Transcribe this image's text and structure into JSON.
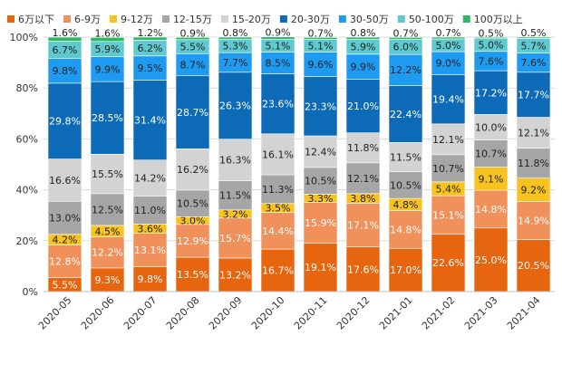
{
  "chart_data": {
    "type": "bar",
    "stacked": true,
    "percent": true,
    "title": "",
    "xlabel": "",
    "ylabel": "",
    "ylim": [
      0,
      100
    ],
    "y_ticks": [
      "0%",
      "20%",
      "40%",
      "60%",
      "80%",
      "100%"
    ],
    "legend_position": "top",
    "categories": [
      "2020-05",
      "2020-06",
      "2020-07",
      "2020-08",
      "2020-09",
      "2020-10",
      "2020-11",
      "2020-12",
      "2021-01",
      "2021-02",
      "2021-03",
      "2021-04"
    ],
    "series": [
      {
        "name": "6万以下",
        "color": "#E8650F",
        "values": [
          5.5,
          9.3,
          9.8,
          13.5,
          13.2,
          16.7,
          19.1,
          17.6,
          17.0,
          22.6,
          25.0,
          20.5
        ]
      },
      {
        "name": "6-9万",
        "color": "#F0905A",
        "values": [
          12.8,
          12.2,
          13.1,
          12.9,
          15.7,
          14.4,
          15.9,
          17.1,
          14.8,
          15.1,
          14.8,
          14.9
        ]
      },
      {
        "name": "9-12万",
        "color": "#F8C31F",
        "values": [
          4.2,
          4.5,
          3.6,
          3.0,
          3.2,
          3.5,
          3.3,
          3.8,
          4.8,
          5.4,
          9.1,
          9.2
        ]
      },
      {
        "name": "12-15万",
        "color": "#A6A6A6",
        "values": [
          13.0,
          12.5,
          11.0,
          10.5,
          11.5,
          11.3,
          10.5,
          12.1,
          10.5,
          10.7,
          10.7,
          11.8
        ]
      },
      {
        "name": "15-20万",
        "color": "#D3D3D3",
        "values": [
          16.6,
          15.5,
          14.2,
          16.2,
          16.3,
          16.1,
          12.4,
          11.8,
          11.5,
          12.1,
          10.0,
          12.1
        ]
      },
      {
        "name": "20-30万",
        "color": "#0D6AB6",
        "values": [
          29.8,
          28.5,
          31.4,
          28.7,
          26.3,
          23.6,
          23.3,
          21.0,
          22.4,
          19.4,
          17.2,
          17.7
        ]
      },
      {
        "name": "30-50万",
        "color": "#1E9BF0",
        "values": [
          9.8,
          9.9,
          9.5,
          8.7,
          7.7,
          8.5,
          9.6,
          9.9,
          12.2,
          9.0,
          7.6,
          7.6
        ]
      },
      {
        "name": "50-100万",
        "color": "#5ECACF",
        "values": [
          6.7,
          5.9,
          6.2,
          5.5,
          5.3,
          5.1,
          5.1,
          5.9,
          6.0,
          5.0,
          5.0,
          5.7
        ]
      },
      {
        "name": "100万以上",
        "color": "#2DB865",
        "values": [
          1.6,
          1.6,
          1.2,
          0.9,
          0.8,
          0.9,
          0.7,
          0.8,
          0.7,
          0.7,
          0.5,
          0.5
        ]
      }
    ]
  }
}
